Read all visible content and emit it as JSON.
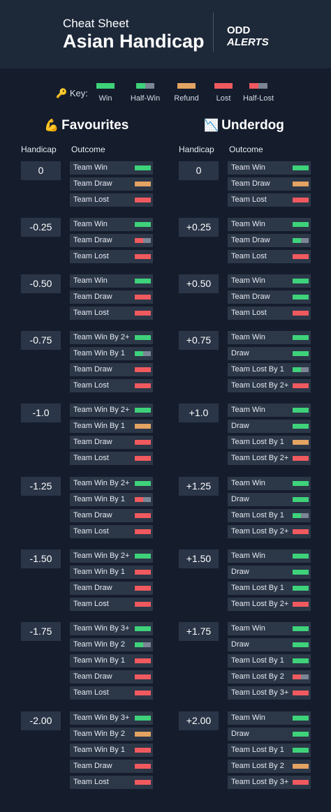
{
  "header": {
    "title_small": "Cheat Sheet",
    "title_big": "Asian Handicap",
    "logo_line1": "ODD",
    "logo_line2": "ALERTS"
  },
  "key": {
    "label": "Key:",
    "items": [
      {
        "type": "win",
        "label": "Win"
      },
      {
        "type": "half-win",
        "label": "Half-Win"
      },
      {
        "type": "refund",
        "label": "Refund"
      },
      {
        "type": "lost",
        "label": "Lost"
      },
      {
        "type": "half-lost",
        "label": "Half-Lost"
      }
    ]
  },
  "colors": {
    "win": "#3ed27a",
    "refund": "#e3a362",
    "lost": "#f05a5f",
    "half_grey": "#7b8594",
    "background": "#151d2d",
    "row": "#2c3748"
  },
  "favourites": {
    "title": "Favourites",
    "emoji": "💪",
    "col_handicap": "Handicap",
    "col_outcome": "Outcome",
    "groups": [
      {
        "handicap": "0",
        "rows": [
          {
            "label": "Team Win",
            "result": "win"
          },
          {
            "label": "Team Draw",
            "result": "refund"
          },
          {
            "label": "Team Lost",
            "result": "lost"
          }
        ]
      },
      {
        "handicap": "-0.25",
        "rows": [
          {
            "label": "Team Win",
            "result": "win"
          },
          {
            "label": "Team Draw",
            "result": "half-lost"
          },
          {
            "label": "Team Lost",
            "result": "lost"
          }
        ]
      },
      {
        "handicap": "-0.50",
        "rows": [
          {
            "label": "Team Win",
            "result": "win"
          },
          {
            "label": "Team Draw",
            "result": "lost"
          },
          {
            "label": "Team Lost",
            "result": "lost"
          }
        ]
      },
      {
        "handicap": "-0.75",
        "rows": [
          {
            "label": "Team Win By 2+",
            "result": "win"
          },
          {
            "label": "Team Win By 1",
            "result": "half-win"
          },
          {
            "label": "Team Draw",
            "result": "lost"
          },
          {
            "label": "Team Lost",
            "result": "lost"
          }
        ]
      },
      {
        "handicap": "-1.0",
        "rows": [
          {
            "label": "Team Win By 2+",
            "result": "win"
          },
          {
            "label": "Team Win By 1",
            "result": "refund"
          },
          {
            "label": "Team Draw",
            "result": "lost"
          },
          {
            "label": "Team Lost",
            "result": "lost"
          }
        ]
      },
      {
        "handicap": "-1.25",
        "rows": [
          {
            "label": "Team Win By 2+",
            "result": "win"
          },
          {
            "label": "Team Win By 1",
            "result": "half-lost"
          },
          {
            "label": "Team Draw",
            "result": "lost"
          },
          {
            "label": "Team Lost",
            "result": "lost"
          }
        ]
      },
      {
        "handicap": "-1.50",
        "rows": [
          {
            "label": "Team Win By 2+",
            "result": "win"
          },
          {
            "label": "Team Win By 1",
            "result": "lost"
          },
          {
            "label": "Team Draw",
            "result": "lost"
          },
          {
            "label": "Team Lost",
            "result": "lost"
          }
        ]
      },
      {
        "handicap": "-1.75",
        "rows": [
          {
            "label": "Team Win By 3+",
            "result": "win"
          },
          {
            "label": "Team Win By 2",
            "result": "half-win"
          },
          {
            "label": "Team Win By 1",
            "result": "lost"
          },
          {
            "label": "Team Draw",
            "result": "lost"
          },
          {
            "label": "Team Lost",
            "result": "lost"
          }
        ]
      },
      {
        "handicap": "-2.00",
        "rows": [
          {
            "label": "Team Win By 3+",
            "result": "win"
          },
          {
            "label": "Team Win By 2",
            "result": "refund"
          },
          {
            "label": "Team Win By 1",
            "result": "lost"
          },
          {
            "label": "Team Draw",
            "result": "lost"
          },
          {
            "label": "Team Lost",
            "result": "lost"
          }
        ]
      }
    ]
  },
  "underdog": {
    "title": "Underdog",
    "emoji": "📉",
    "col_handicap": "Handicap",
    "col_outcome": "Outcome",
    "groups": [
      {
        "handicap": "0",
        "rows": [
          {
            "label": "Team Win",
            "result": "win"
          },
          {
            "label": "Team Draw",
            "result": "refund"
          },
          {
            "label": "Team Lost",
            "result": "lost"
          }
        ]
      },
      {
        "handicap": "+0.25",
        "rows": [
          {
            "label": "Team Win",
            "result": "win"
          },
          {
            "label": "Team Draw",
            "result": "half-win"
          },
          {
            "label": "Team Lost",
            "result": "lost"
          }
        ]
      },
      {
        "handicap": "+0.50",
        "rows": [
          {
            "label": "Team Win",
            "result": "win"
          },
          {
            "label": "Team Draw",
            "result": "win"
          },
          {
            "label": "Team Lost",
            "result": "lost"
          }
        ]
      },
      {
        "handicap": "+0.75",
        "rows": [
          {
            "label": "Team Win",
            "result": "win"
          },
          {
            "label": "Draw",
            "result": "win"
          },
          {
            "label": "Team Lost By 1",
            "result": "half-win"
          },
          {
            "label": "Team Lost By 2+",
            "result": "lost"
          }
        ]
      },
      {
        "handicap": "+1.0",
        "rows": [
          {
            "label": "Team Win",
            "result": "win"
          },
          {
            "label": "Draw",
            "result": "win"
          },
          {
            "label": "Team Lost By 1",
            "result": "refund"
          },
          {
            "label": "Team Lost By 2+",
            "result": "lost"
          }
        ]
      },
      {
        "handicap": "+1.25",
        "rows": [
          {
            "label": "Team Win",
            "result": "win"
          },
          {
            "label": "Draw",
            "result": "win"
          },
          {
            "label": "Team Lost By 1",
            "result": "half-win"
          },
          {
            "label": "Team Lost By 2+",
            "result": "lost"
          }
        ]
      },
      {
        "handicap": "+1.50",
        "rows": [
          {
            "label": "Team Win",
            "result": "win"
          },
          {
            "label": "Draw",
            "result": "win"
          },
          {
            "label": "Team Lost By 1",
            "result": "win"
          },
          {
            "label": "Team Lost By 2+",
            "result": "lost"
          }
        ]
      },
      {
        "handicap": "+1.75",
        "rows": [
          {
            "label": "Team Win",
            "result": "win"
          },
          {
            "label": "Draw",
            "result": "win"
          },
          {
            "label": "Team Lost By 1",
            "result": "win"
          },
          {
            "label": "Team Lost By 2",
            "result": "half-lost"
          },
          {
            "label": "Team Lost By 3+",
            "result": "lost"
          }
        ]
      },
      {
        "handicap": "+2.00",
        "rows": [
          {
            "label": "Team Win",
            "result": "win"
          },
          {
            "label": "Draw",
            "result": "win"
          },
          {
            "label": "Team Lost By 1",
            "result": "win"
          },
          {
            "label": "Team Lost By 2",
            "result": "refund"
          },
          {
            "label": "Team Lost By 3+",
            "result": "lost"
          }
        ]
      }
    ]
  }
}
